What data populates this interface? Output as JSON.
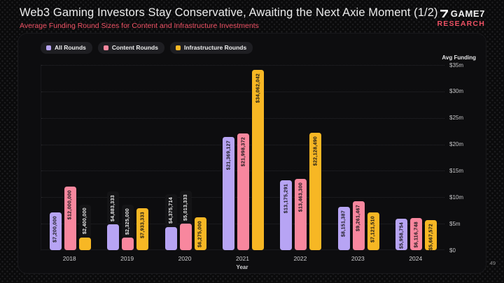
{
  "page": {
    "title": "Web3 Gaming Investors Stay Conservative, Awaiting the Next Axie Moment (1/2)",
    "subtitle": "Average Funding Round Sizes for Content and Infrastructure Investments",
    "page_number": "49"
  },
  "logo": {
    "brand": "GAME7",
    "sub": "RESEARCH",
    "mark": "game7-seven-mark"
  },
  "colors": {
    "accent_red": "#ef5164",
    "all_rounds": "#b7a4f4",
    "content_rounds": "#f8879e",
    "infrastructure_rounds": "#f7b724",
    "card_bg": "#0d0d0f",
    "page_bg": "#0a0a0b",
    "label_pill_bg": "#141416"
  },
  "chart_data": {
    "type": "bar",
    "title": "Average Funding Round Sizes for Content and Infrastructure Investments",
    "categories": [
      "2018",
      "2019",
      "2020",
      "2021",
      "2022",
      "2023",
      "2024"
    ],
    "series": [
      {
        "name": "All Rounds",
        "color": "#b7a4f4",
        "values": [
          7200000,
          4883333,
          4375714,
          21369127,
          13175291,
          8151387,
          5958754
        ],
        "labels": [
          "$7,200,000",
          "$4,883,333",
          "$4,375,714",
          "$21,369,127",
          "$13,175,291",
          "$8,151,387",
          "$5,958,754"
        ]
      },
      {
        "name": "Content Rounds",
        "color": "#f8879e",
        "values": [
          12000000,
          2325000,
          5013333,
          21998372,
          13463300,
          9261467,
          6116748
        ],
        "labels": [
          "$12,000,000",
          "$2,325,000",
          "$5,013,333",
          "$21,998,372",
          "$13,463,300",
          "$9,261,467",
          "$6,116,748"
        ]
      },
      {
        "name": "Infrastructure Rounds",
        "color": "#f7b724",
        "values": [
          2400000,
          7933333,
          6275000,
          34062042,
          22128490,
          7121510,
          5667572
        ],
        "labels": [
          "$2,400,000",
          "$7,933,333",
          "$6,275,000",
          "$34,062,042",
          "$22,128,490",
          "$7,121,510",
          "$5,667,572"
        ]
      }
    ],
    "xlabel": "Year",
    "ylabel": "Avg Funding",
    "ylim": [
      0,
      35000000
    ],
    "yticks": [
      "$35m",
      "$30m",
      "$25m",
      "$20m",
      "$15m",
      "$10m",
      "$5m",
      "$0"
    ],
    "legend_position": "top-left",
    "grid": "dotted-horizontal"
  }
}
